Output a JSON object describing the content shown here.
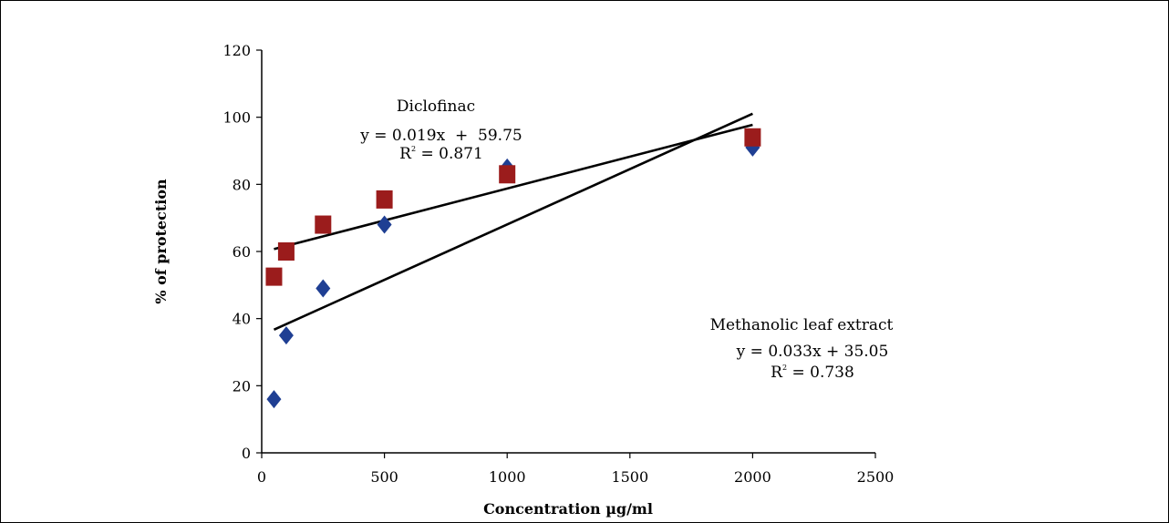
{
  "chart_data": {
    "type": "scatter",
    "title": "",
    "xlabel": "Concentration µg/ml",
    "ylabel": "% of protection",
    "xlim": [
      0,
      2500
    ],
    "ylim": [
      0,
      120
    ],
    "xticks": [
      0,
      500,
      1000,
      1500,
      2000,
      2500
    ],
    "xtick_labels": [
      "0",
      "500",
      "1000",
      "1500",
      "2000",
      "2500"
    ],
    "yticks": [
      0,
      20,
      40,
      60,
      80,
      100,
      120
    ],
    "grid": false,
    "legend": "none",
    "series": [
      {
        "marker": "diamond",
        "color": "#1f3f93",
        "x": [
          50,
          100,
          250,
          500,
          1000,
          2000
        ],
        "y": [
          16,
          35,
          49,
          68,
          85,
          91
        ],
        "trendline": {
          "slope": 0.033,
          "intercept": 35.05
        },
        "annotation": {
          "name": "Methanolic leaf extract",
          "equation": "y = 0.033x + 35.05",
          "r2_prefix": "R",
          "r2_sup": "2",
          "r2_suffix": " = 0.738"
        }
      },
      {
        "marker": "square",
        "color": "#9b1c1c",
        "x": [
          50,
          100,
          250,
          500,
          1000,
          2000
        ],
        "y": [
          52.5,
          60,
          68,
          75.5,
          83,
          94
        ],
        "trendline": {
          "slope": 0.019,
          "intercept": 59.75
        },
        "annotation": {
          "name": "Diclofinac",
          "equation": "y = 0.019x  +  59.75",
          "r2_prefix": "R",
          "r2_sup": "2",
          "r2_suffix": " = 0.871"
        }
      }
    ]
  }
}
